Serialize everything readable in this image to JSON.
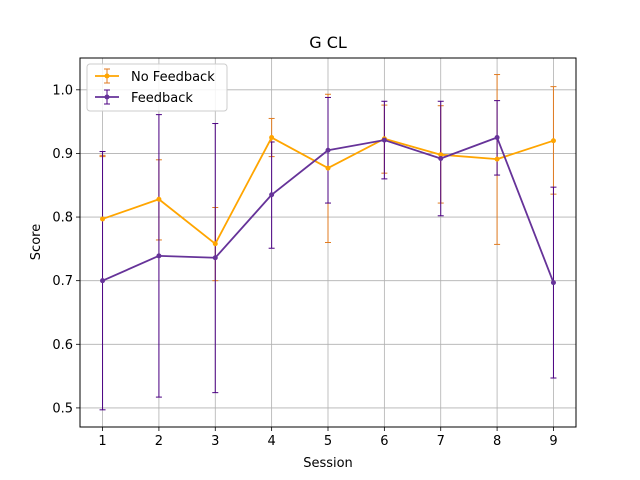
{
  "chart_data": {
    "type": "line",
    "title": "G CL",
    "xlabel": "Session",
    "ylabel": "Score",
    "x": [
      1,
      2,
      3,
      4,
      5,
      6,
      7,
      8,
      9
    ],
    "xlim": [
      0.6,
      9.4
    ],
    "ylim": [
      0.47,
      1.05
    ],
    "yticks": [
      0.5,
      0.6,
      0.7,
      0.8,
      0.9,
      1.0
    ],
    "ytick_labels": [
      "0.5",
      "0.6",
      "0.7",
      "0.8",
      "0.9",
      "1.0"
    ],
    "grid": true,
    "legend_position": "top-left",
    "series": [
      {
        "name": "No Feedback",
        "color": "#ffa500",
        "errcolor": "#e07b20",
        "values": [
          0.797,
          0.828,
          0.758,
          0.925,
          0.877,
          0.923,
          0.898,
          0.891,
          0.92
        ],
        "err_low": [
          0.895,
          0.764,
          0.7,
          0.895,
          0.76,
          0.869,
          0.822,
          0.757,
          0.836
        ],
        "err_high": [
          0.897,
          0.89,
          0.815,
          0.955,
          0.993,
          0.976,
          0.975,
          1.024,
          1.005
        ]
      },
      {
        "name": "Feedback",
        "color": "#663399",
        "errcolor": "#4b0082",
        "values": [
          0.7,
          0.739,
          0.736,
          0.835,
          0.905,
          0.921,
          0.892,
          0.925,
          0.697
        ],
        "err_low": [
          0.497,
          0.517,
          0.524,
          0.751,
          0.822,
          0.86,
          0.802,
          0.866,
          0.547
        ],
        "err_high": [
          0.903,
          0.961,
          0.947,
          0.918,
          0.988,
          0.982,
          0.982,
          0.983,
          0.847
        ]
      }
    ]
  }
}
